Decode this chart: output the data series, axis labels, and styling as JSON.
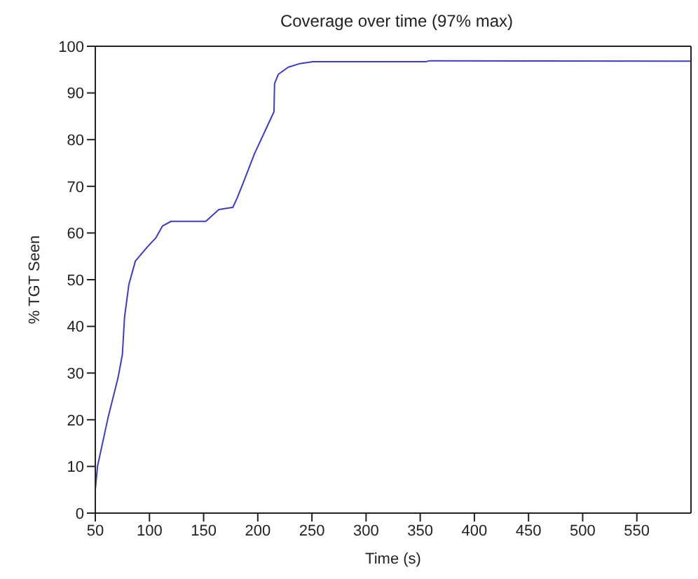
{
  "chart_data": {
    "type": "line",
    "title": "Coverage over time (97% max)",
    "xlabel": "Time (s)",
    "ylabel": "% TGT Seen",
    "xlim": [
      50,
      600
    ],
    "xticks": [
      50,
      100,
      150,
      200,
      250,
      300,
      350,
      400,
      450,
      500,
      550
    ],
    "ylim": [
      0,
      100
    ],
    "yticks": [
      0,
      10,
      20,
      30,
      40,
      50,
      60,
      70,
      80,
      90,
      100
    ],
    "grid": false,
    "legend": false,
    "marker": "none",
    "line_style": "solid",
    "x": [
      50,
      52,
      62,
      71,
      75,
      77,
      81,
      87,
      98,
      106,
      112,
      120,
      152,
      164,
      177,
      181,
      187,
      197,
      209,
      215,
      215.5,
      219,
      228,
      239,
      251,
      355,
      359,
      600
    ],
    "series": [
      {
        "color": "#3c3cc8",
        "values": [
          5,
          10,
          20.7,
          29,
          34,
          42,
          49,
          54,
          57,
          59,
          61.5,
          62.5,
          62.5,
          65,
          65.5,
          67.5,
          71,
          77,
          83,
          86,
          92,
          94,
          95.5,
          96.3,
          96.7,
          96.7,
          96.9,
          96.8
        ]
      }
    ]
  }
}
